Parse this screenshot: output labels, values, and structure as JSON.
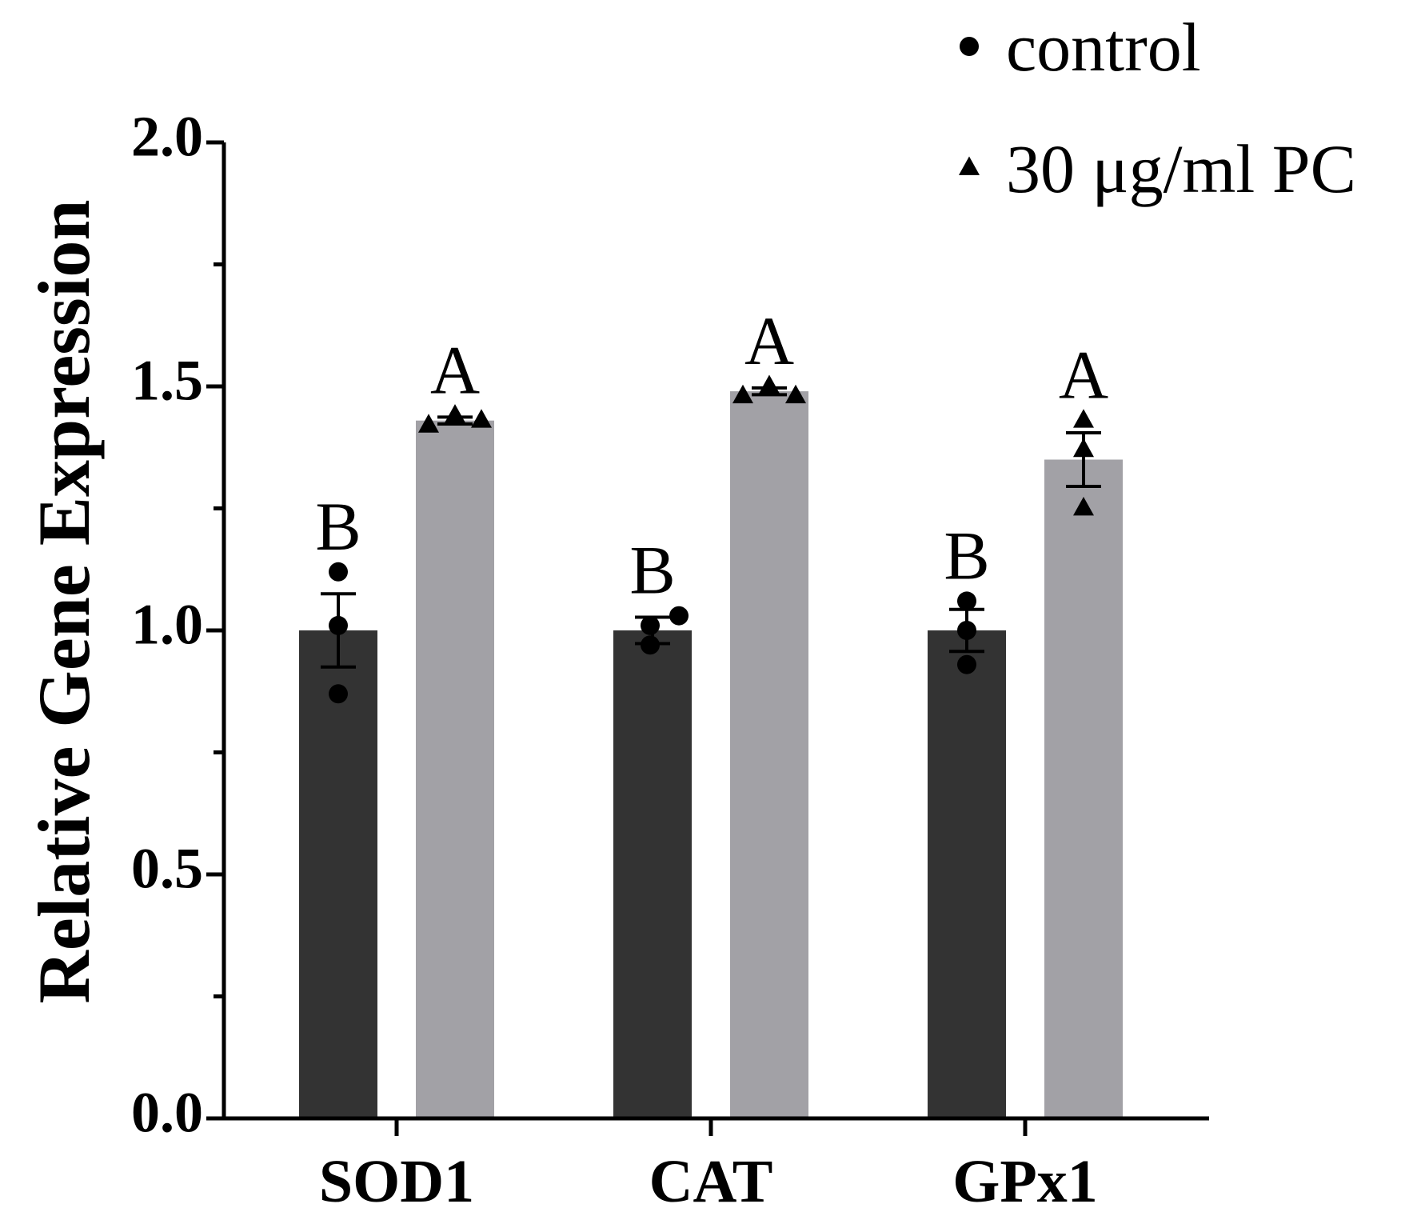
{
  "chart_data": {
    "type": "bar",
    "title": "",
    "xlabel": "",
    "ylabel": "Relative Gene Expression",
    "ylim": [
      0,
      2.0
    ],
    "yticks": [
      0.0,
      0.5,
      1.0,
      1.5,
      2.0
    ],
    "ytick_labels": [
      "0.0",
      "0.5",
      "1.0",
      "1.5",
      "2.0"
    ],
    "categories": [
      "SOD1",
      "CAT",
      "GPx1"
    ],
    "legend_position": "top-right",
    "series": [
      {
        "name": "control",
        "marker": "circle",
        "color": "#333333",
        "values": [
          1.0,
          1.0,
          1.0
        ],
        "sem": [
          0.075,
          0.027,
          0.043
        ],
        "points": [
          [
            1.12,
            1.01,
            0.87
          ],
          [
            1.01,
            0.97,
            1.03
          ],
          [
            1.06,
            1.0,
            0.93
          ]
        ],
        "significance": [
          "B",
          "B",
          "B"
        ]
      },
      {
        "name": "30 μg/ml PC",
        "marker": "triangle",
        "color": "#a2a1a6",
        "values": [
          1.43,
          1.49,
          1.35
        ],
        "sem": [
          0.007,
          0.007,
          0.055
        ],
        "points": [
          [
            1.42,
            1.44,
            1.43
          ],
          [
            1.48,
            1.5,
            1.48
          ],
          [
            1.43,
            1.37,
            1.25
          ]
        ],
        "significance": [
          "A",
          "A",
          "A"
        ]
      }
    ]
  }
}
